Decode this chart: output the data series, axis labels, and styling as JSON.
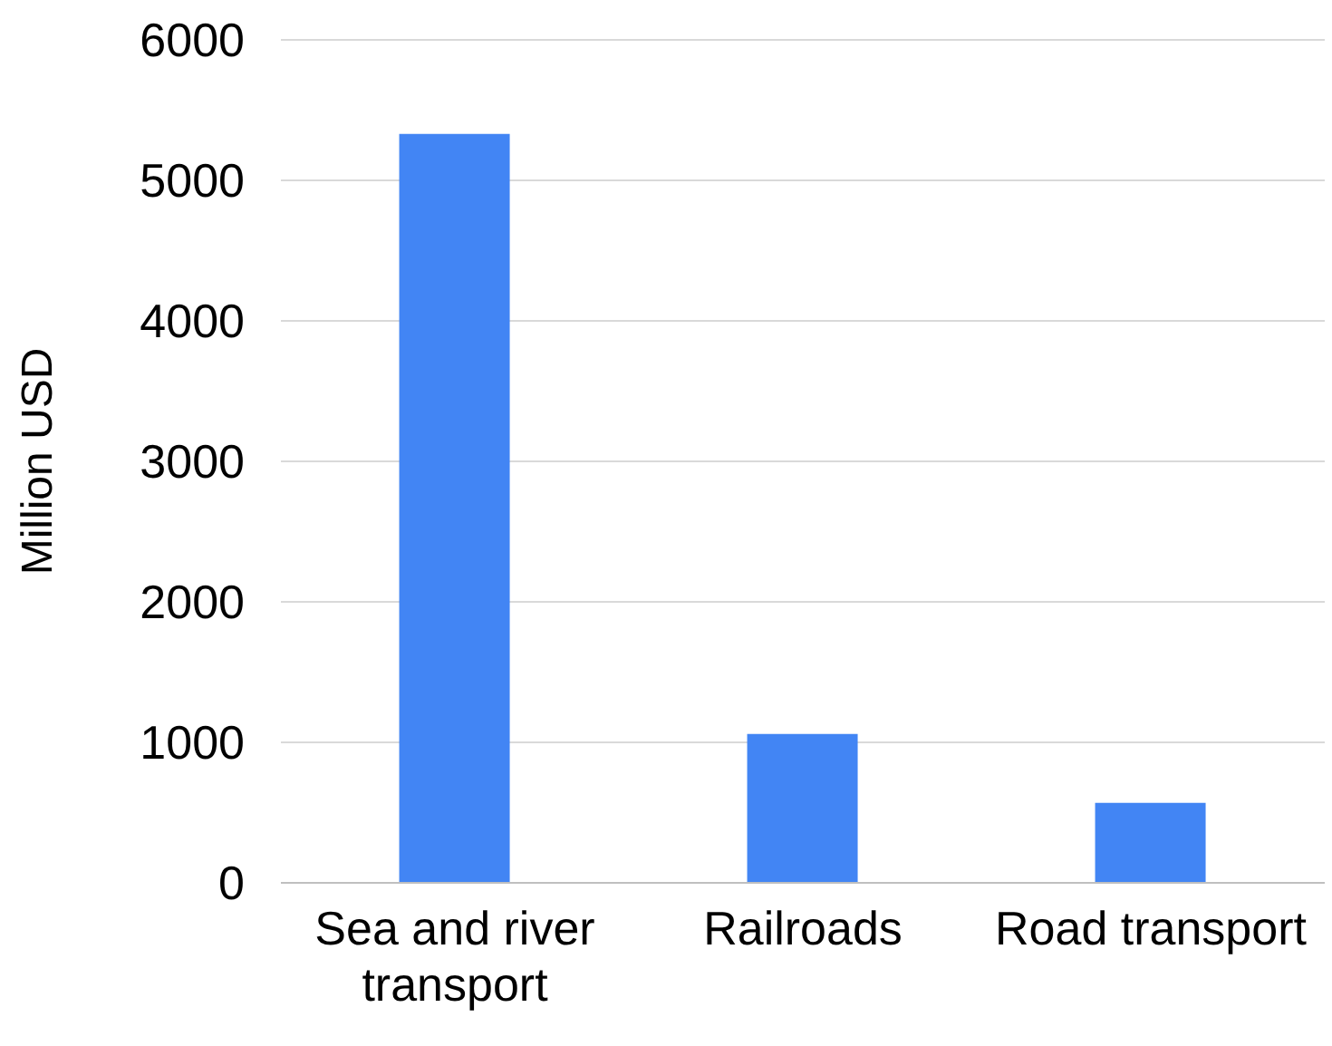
{
  "chart_data": {
    "type": "bar",
    "ylabel": "Million USD",
    "categories": [
      "Sea and river transport",
      "Railroads",
      "Road transport"
    ],
    "values": [
      5330,
      1060,
      570
    ],
    "color": "#4285f4",
    "ylim": [
      0,
      6000
    ],
    "yticks": [
      0,
      1000,
      2000,
      3000,
      4000,
      5000,
      6000
    ],
    "grid": "y"
  }
}
